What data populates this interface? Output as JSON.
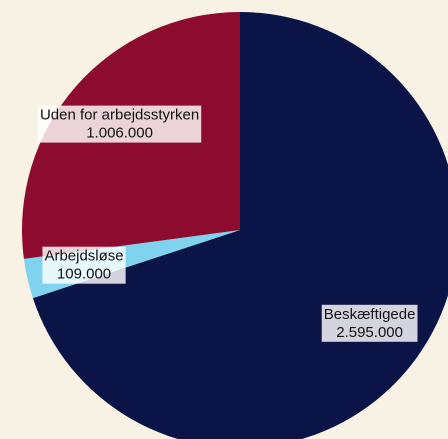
{
  "chart_data": {
    "type": "pie",
    "categories": [
      "Beskæftigede",
      "Arbejdsløse",
      "Uden for arbejdsstyrken"
    ],
    "values": [
      2595000,
      109000,
      1006000
    ],
    "value_labels": [
      "2.595.000",
      "109.000",
      "1.006.000"
    ],
    "colors": [
      "#0b1447",
      "#7fd3ee",
      "#8c0b2f"
    ]
  }
}
